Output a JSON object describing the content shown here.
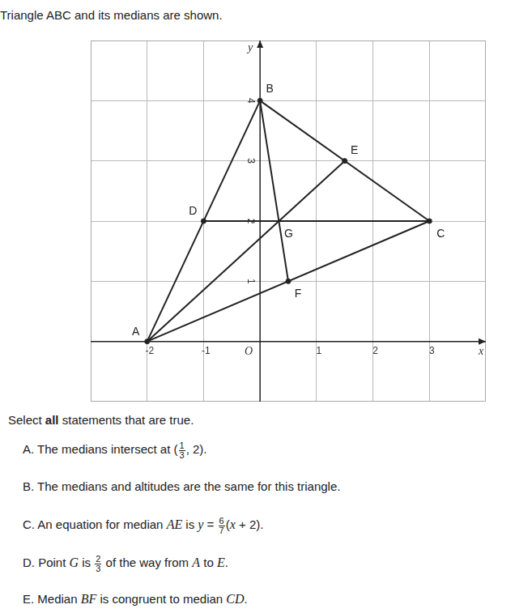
{
  "title": "Triangle ABC and its medians are shown.",
  "chart_data": {
    "type": "scatter",
    "xlim": [
      -3,
      4
    ],
    "ylim": [
      -1,
      5
    ],
    "xticks": [
      -2,
      -1,
      1,
      2,
      3
    ],
    "yticks": [
      1,
      2,
      3,
      4
    ],
    "xlabel": "x",
    "ylabel": "y",
    "origin_label": "O",
    "grid": true,
    "color": "#222222",
    "series": [
      {
        "marker": "circle",
        "points": [
          {
            "label": "A",
            "x": -2,
            "y": 0
          },
          {
            "label": "B",
            "x": 0,
            "y": 4
          },
          {
            "label": "C",
            "x": 3,
            "y": 2
          },
          {
            "label": "D",
            "x": -1,
            "y": 2
          },
          {
            "label": "E",
            "x": 1.5,
            "y": 3
          },
          {
            "label": "F",
            "x": 0.5,
            "y": 1
          }
        ]
      },
      {
        "marker": "none",
        "points": [
          {
            "label": "G",
            "x": 0.333,
            "y": 2
          }
        ]
      }
    ],
    "segments": [
      [
        "A",
        "B"
      ],
      [
        "B",
        "C"
      ],
      [
        "C",
        "A"
      ],
      [
        "A",
        "E"
      ],
      [
        "B",
        "F"
      ],
      [
        "C",
        "D"
      ]
    ]
  },
  "prompt": [
    {
      "text": "Select "
    },
    {
      "bold": "all"
    },
    {
      "text": " statements that are true."
    }
  ],
  "statements": [
    {
      "letter": "A.",
      "parts": [
        {
          "text": "The medians intersect at ("
        },
        {
          "num": "1",
          "den": "3"
        },
        {
          "text": ", 2)."
        }
      ]
    },
    {
      "letter": "B.",
      "parts": [
        {
          "text": "The medians and altitudes are the same for this triangle."
        }
      ]
    },
    {
      "letter": "C.",
      "parts": [
        {
          "text": "An equation for median "
        },
        {
          "italic": "AE"
        },
        {
          "text": " is "
        },
        {
          "italic": "y"
        },
        {
          "text": " = "
        },
        {
          "num": "6",
          "den": "7"
        },
        {
          "text": "("
        },
        {
          "italic": "x"
        },
        {
          "text": " + 2)."
        }
      ]
    },
    {
      "letter": "D.",
      "parts": [
        {
          "text": "Point "
        },
        {
          "italic": "G"
        },
        {
          "text": " is "
        },
        {
          "num": "2",
          "den": "3"
        },
        {
          "text": " of the way from "
        },
        {
          "italic": "A"
        },
        {
          "text": " to "
        },
        {
          "italic": "E"
        },
        {
          "text": "."
        }
      ]
    },
    {
      "letter": "E.",
      "parts": [
        {
          "text": "Median "
        },
        {
          "italic": "BF"
        },
        {
          "text": " is congruent to median "
        },
        {
          "italic": "CD"
        },
        {
          "text": "."
        }
      ]
    }
  ]
}
